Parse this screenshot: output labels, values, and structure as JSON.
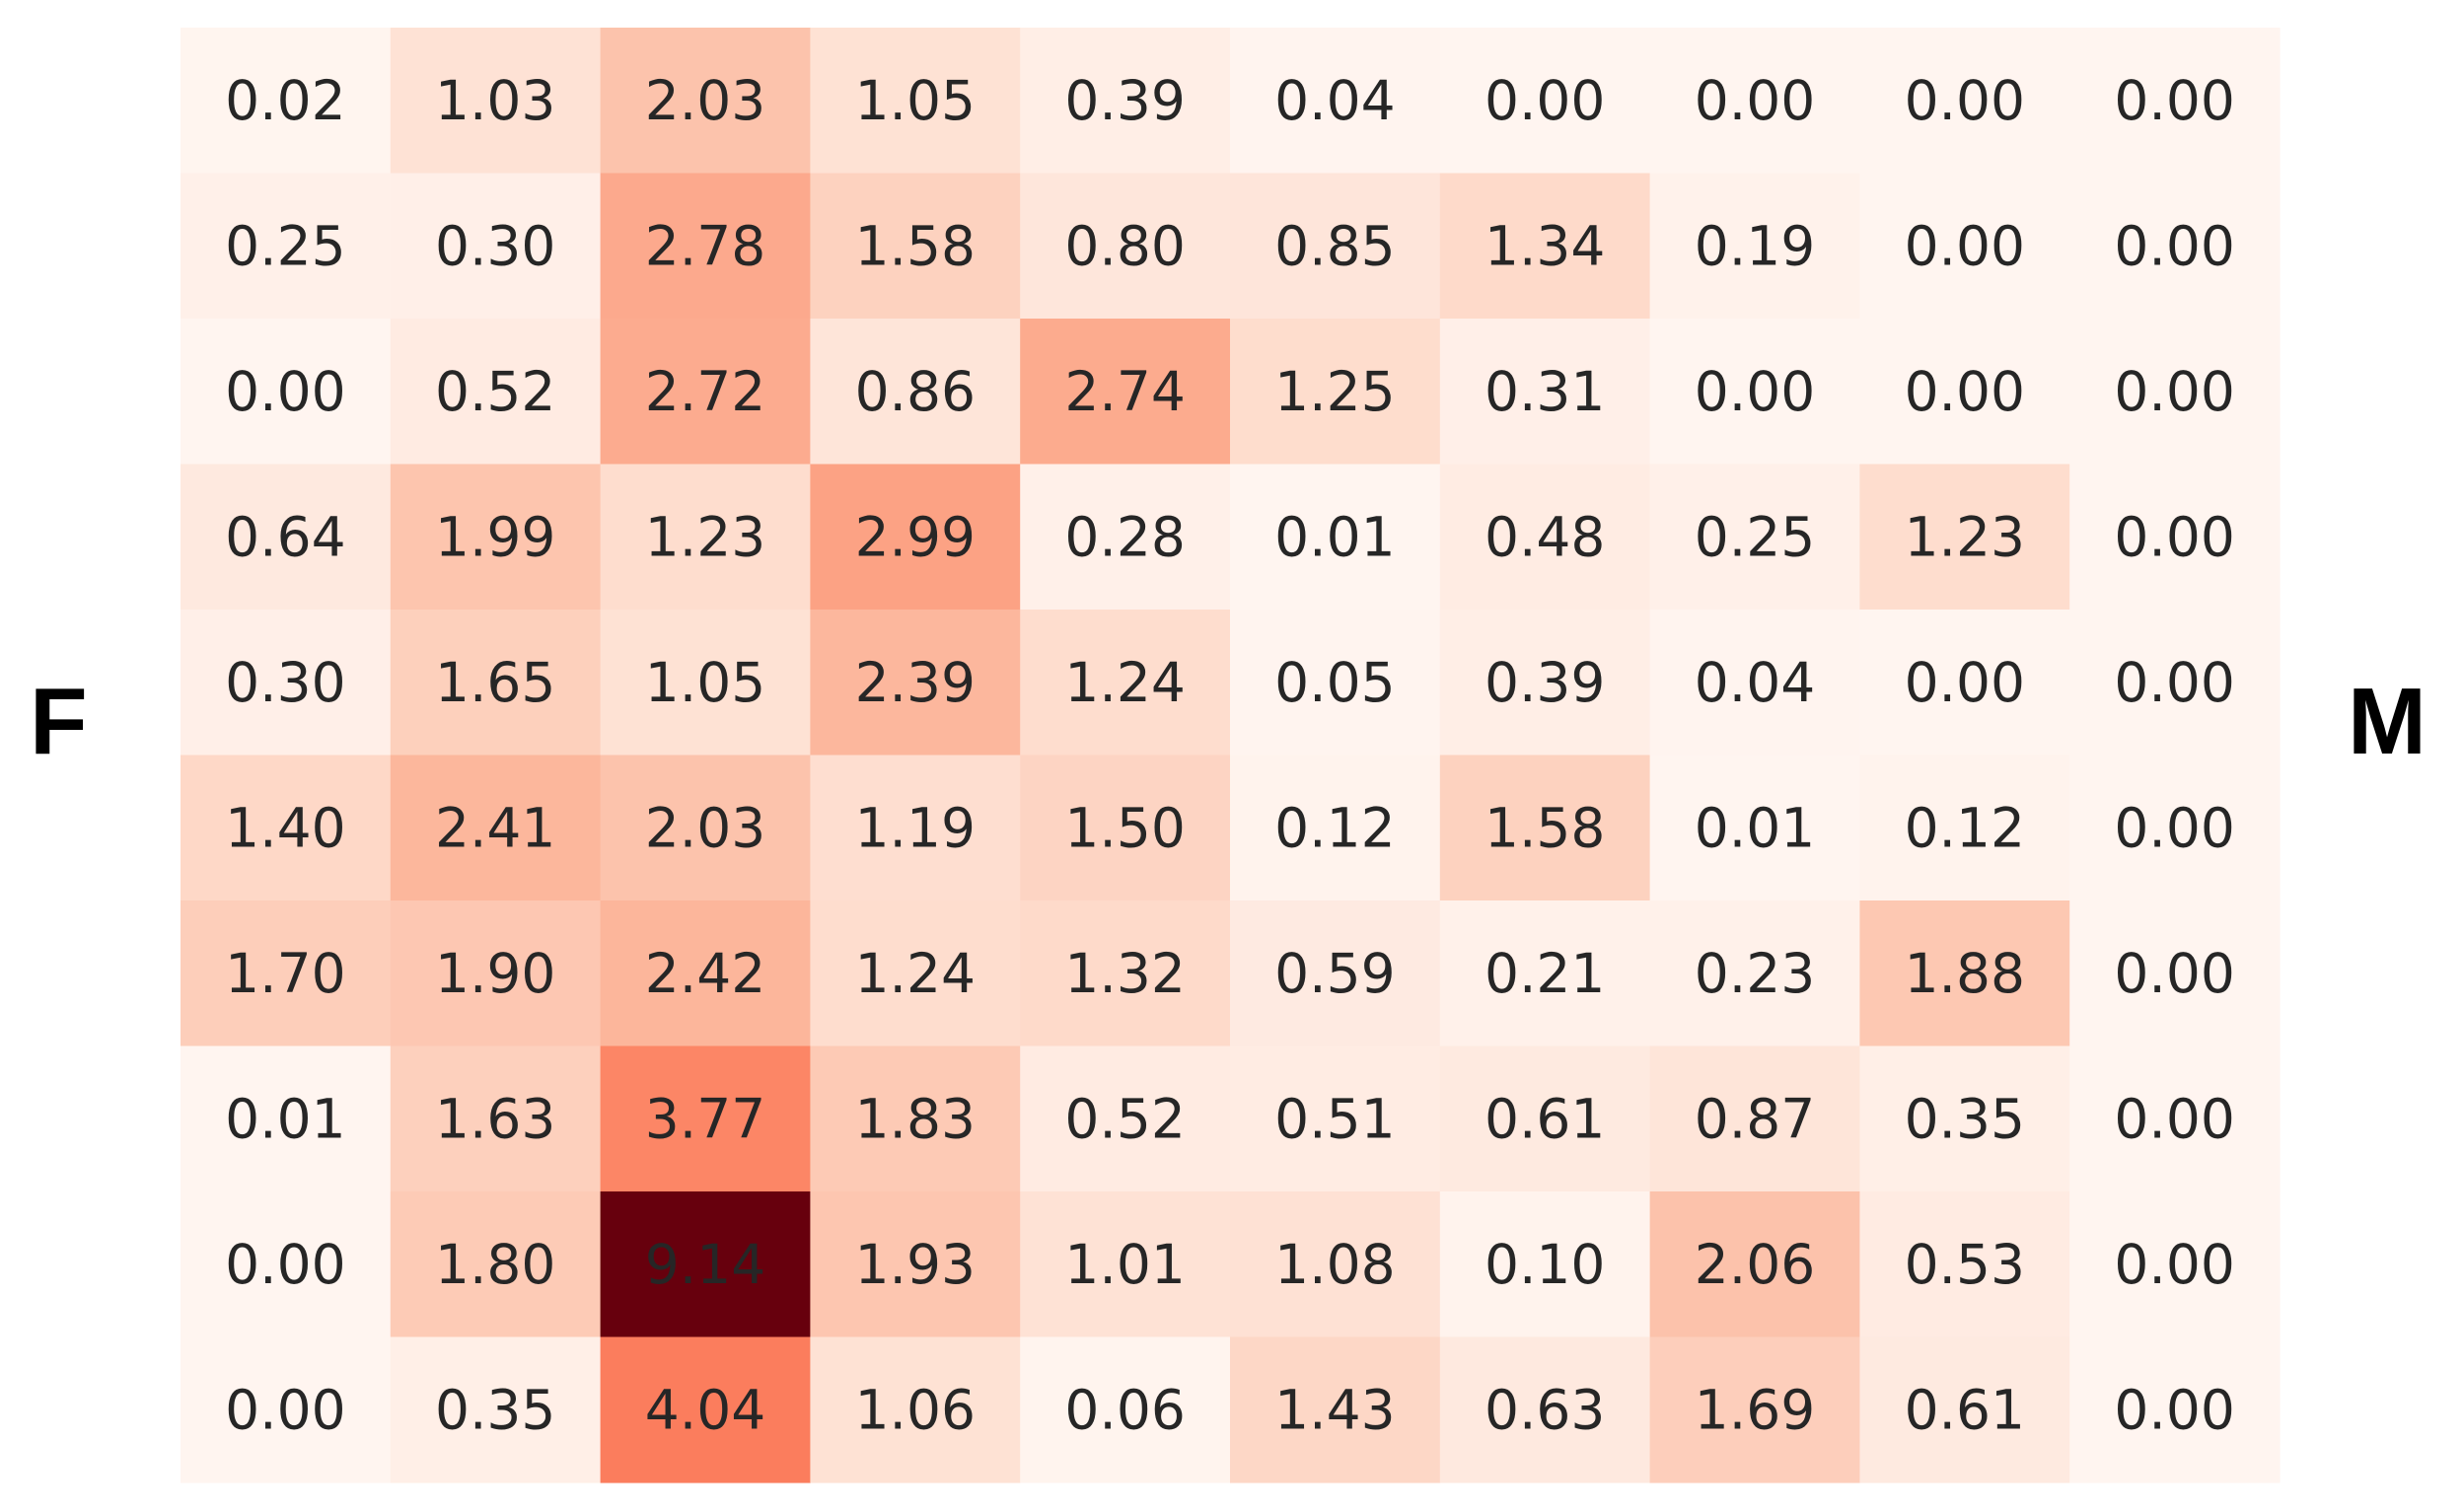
{
  "labels": {
    "left": "F",
    "right": "M"
  },
  "chart_data": {
    "type": "heatmap",
    "title": "",
    "xlabel": "",
    "ylabel": "",
    "rows": 10,
    "cols": 10,
    "value_range": [
      0,
      9.14
    ],
    "colormap": "Reds",
    "grid": false,
    "values": [
      [
        0.02,
        1.03,
        2.03,
        1.05,
        0.39,
        0.04,
        0.0,
        0.0,
        0.0,
        0.0
      ],
      [
        0.25,
        0.3,
        2.78,
        1.58,
        0.8,
        0.85,
        1.34,
        0.19,
        0.0,
        0.0
      ],
      [
        0.0,
        0.52,
        2.72,
        0.86,
        2.74,
        1.25,
        0.31,
        0.0,
        0.0,
        0.0
      ],
      [
        0.64,
        1.99,
        1.23,
        2.99,
        0.28,
        0.01,
        0.48,
        0.25,
        1.23,
        0.0
      ],
      [
        0.3,
        1.65,
        1.05,
        2.39,
        1.24,
        0.05,
        0.39,
        0.04,
        0.0,
        0.0
      ],
      [
        1.4,
        2.41,
        2.03,
        1.19,
        1.5,
        0.12,
        1.58,
        0.01,
        0.12,
        0.0
      ],
      [
        1.7,
        1.9,
        2.42,
        1.24,
        1.32,
        0.59,
        0.21,
        0.23,
        1.88,
        0.0
      ],
      [
        0.01,
        1.63,
        3.77,
        1.83,
        0.52,
        0.51,
        0.61,
        0.87,
        0.35,
        0.0
      ],
      [
        0.0,
        1.8,
        9.14,
        1.93,
        1.01,
        1.08,
        0.1,
        2.06,
        0.53,
        0.0
      ],
      [
        0.0,
        0.35,
        4.04,
        1.06,
        0.06,
        1.43,
        0.63,
        1.69,
        0.61,
        0.0
      ]
    ]
  }
}
